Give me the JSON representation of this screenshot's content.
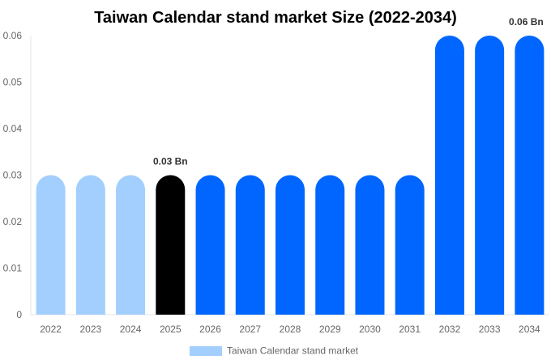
{
  "chart_data": {
    "type": "bar",
    "title": "Taiwan Calendar stand market  Size (2022-2034)",
    "categories": [
      "2022",
      "2023",
      "2024",
      "2025",
      "2026",
      "2027",
      "2028",
      "2029",
      "2030",
      "2031",
      "2032",
      "2033",
      "2034"
    ],
    "series": [
      {
        "name": "Taiwan Calendar stand market",
        "values": [
          0.03,
          0.03,
          0.03,
          0.03,
          0.03,
          0.03,
          0.03,
          0.03,
          0.03,
          0.03,
          0.06,
          0.06,
          0.06
        ]
      }
    ],
    "bar_colors": [
      "#a2cffe",
      "#a2cffe",
      "#a2cffe",
      "#000000",
      "#0066ff",
      "#0066ff",
      "#0066ff",
      "#0066ff",
      "#0066ff",
      "#0066ff",
      "#0066ff",
      "#0066ff",
      "#0066ff"
    ],
    "data_labels": [
      {
        "category": "2025",
        "text": "0.03 Bn"
      },
      {
        "category": "2034",
        "text": "0.06 Bn"
      }
    ],
    "yticks": [
      "0",
      "0.01",
      "0.02",
      "0.03",
      "0.04",
      "0.05",
      "0.06"
    ],
    "ylim": [
      0,
      0.06
    ],
    "xlabel": "",
    "ylabel": "",
    "grid": false,
    "legend": {
      "position": "bottom",
      "label": "Taiwan Calendar stand market",
      "color": "#a2cffe"
    }
  }
}
